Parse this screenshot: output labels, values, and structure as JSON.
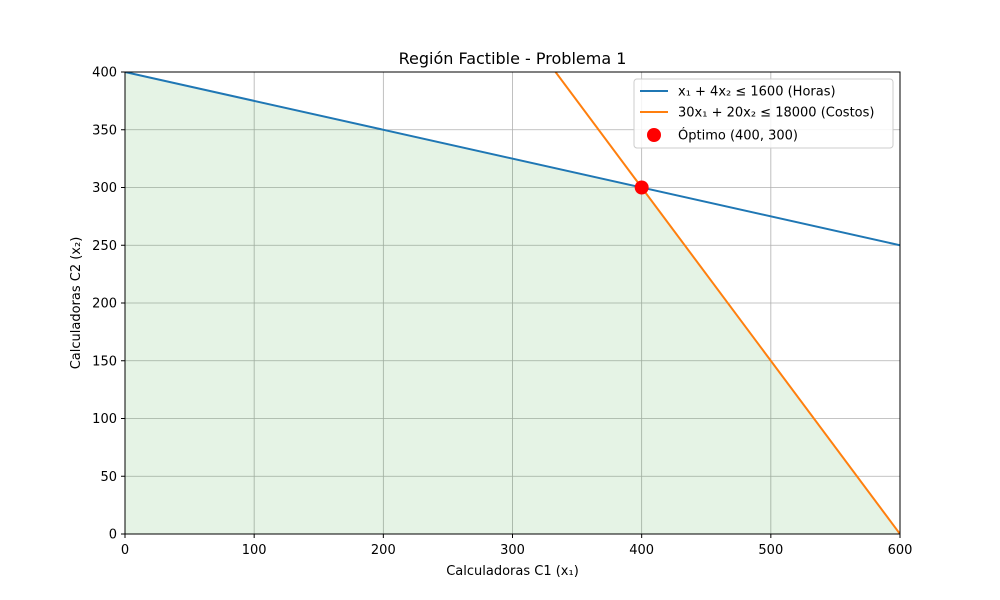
{
  "chart_data": {
    "type": "line",
    "title": "Región Factible - Problema 1",
    "xlabel": "Calculadoras C1 (x₁)",
    "ylabel": "Calculadoras C2 (x₂)",
    "xlim": [
      0,
      600
    ],
    "ylim": [
      0,
      400
    ],
    "xticks": [
      0,
      100,
      200,
      300,
      400,
      500,
      600
    ],
    "yticks": [
      0,
      50,
      100,
      150,
      200,
      250,
      300,
      350,
      400
    ],
    "grid": true,
    "legend_position": "top-right",
    "series": [
      {
        "name": "x₁ + 4x₂ ≤ 1600 (Horas)",
        "color": "#1f77b4",
        "x": [
          0,
          600
        ],
        "y": [
          400,
          250
        ]
      },
      {
        "name": "30x₁ + 20x₂ ≤ 18000 (Costos)",
        "color": "#ff7f0e",
        "x": [
          333.33,
          600
        ],
        "y": [
          400,
          0
        ]
      }
    ],
    "optimum": {
      "name": "Óptimo (400, 300)",
      "color": "#ff0000",
      "x": 400,
      "y": 300
    },
    "feasible_region": {
      "color": "#2ca02c",
      "opacity": 0.12,
      "x": [
        0,
        0,
        400,
        600
      ],
      "y": [
        0,
        400,
        300,
        0
      ]
    }
  }
}
